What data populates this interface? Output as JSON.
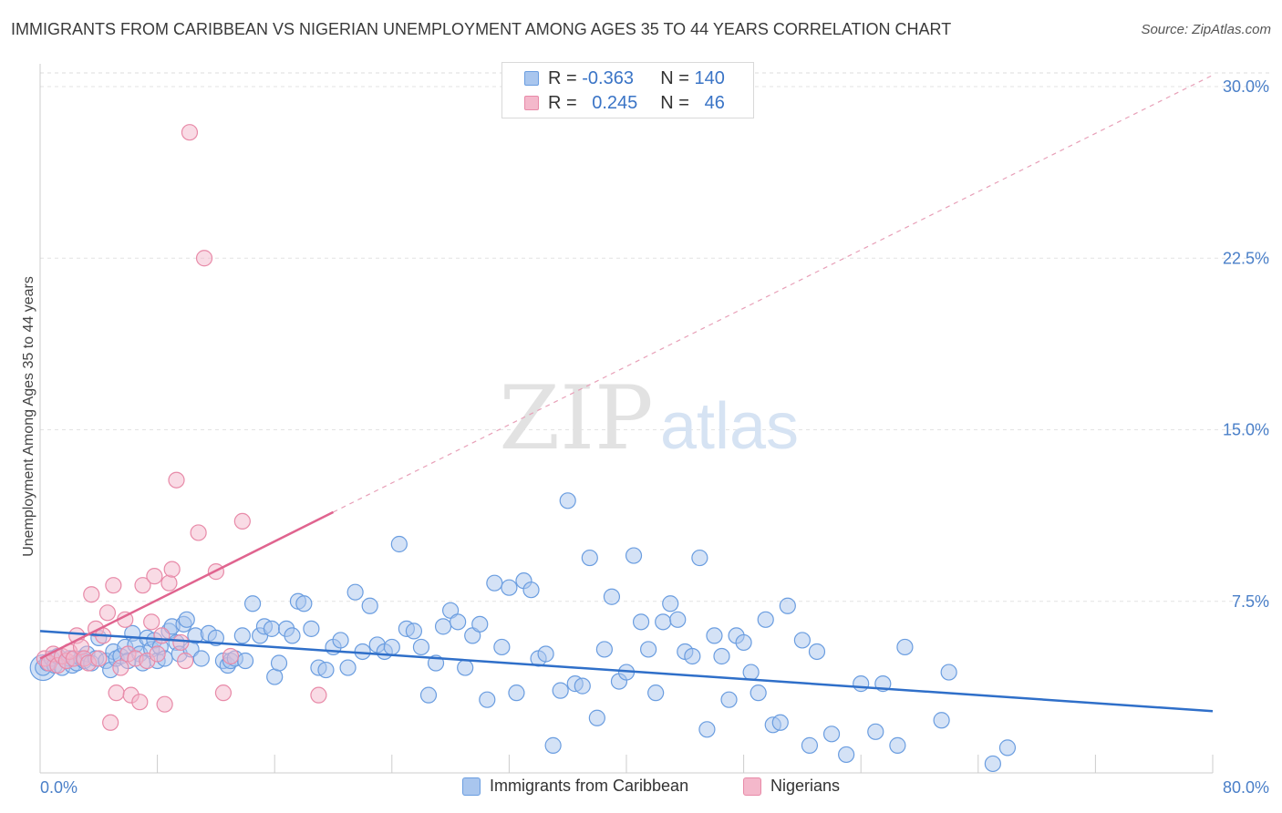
{
  "title": "IMMIGRANTS FROM CARIBBEAN VS NIGERIAN UNEMPLOYMENT AMONG AGES 35 TO 44 YEARS CORRELATION CHART",
  "source": "Source: ZipAtlas.com",
  "watermark": {
    "zip": "ZIP",
    "atlas": "atlas"
  },
  "legend": {
    "rows": [
      {
        "r_label": "R =",
        "r_value": "-0.363",
        "n_label": "N =",
        "n_value": "140",
        "color": "#a9c6ee"
      },
      {
        "r_label": "R =",
        "r_value": "0.245",
        "n_label": "N =",
        "n_value": "46",
        "color": "#f4b8cb"
      }
    ]
  },
  "bottom_legend": [
    {
      "label": "Immigrants from Caribbean",
      "color": "#a9c6ee"
    },
    {
      "label": "Nigerians",
      "color": "#f4b8cb"
    }
  ],
  "chart_data": {
    "type": "scatter",
    "title": "IMMIGRANTS FROM CARIBBEAN VS NIGERIAN UNEMPLOYMENT AMONG AGES 35 TO 44 YEARS CORRELATION CHART",
    "xlabel": "",
    "ylabel": "Unemployment Among Ages 35 to 44 years",
    "xlim": [
      0,
      80
    ],
    "ylim": [
      0,
      30
    ],
    "x_tick_labels": [
      "0.0%",
      "80.0%"
    ],
    "y_ticks": [
      7.5,
      15.0,
      22.5,
      30.0
    ],
    "y_tick_labels": [
      "7.5%",
      "15.0%",
      "22.5%",
      "30.0%"
    ],
    "grid": "horizontal dashed",
    "legend_position": "top-center",
    "series": [
      {
        "name": "Immigrants from Caribbean",
        "color": "#6a9de0",
        "fill": "#a9c6ee",
        "trend": {
          "x": [
            0,
            80
          ],
          "y": [
            6.2,
            2.7
          ],
          "style": "solid"
        },
        "points": [
          [
            0.2,
            4.6
          ],
          [
            0.5,
            4.8
          ],
          [
            0.8,
            5.0
          ],
          [
            1.0,
            4.7
          ],
          [
            1.2,
            5.1
          ],
          [
            1.5,
            4.6
          ],
          [
            1.8,
            4.9
          ],
          [
            2.0,
            5.0
          ],
          [
            2.2,
            4.7
          ],
          [
            2.5,
            4.8
          ],
          [
            2.8,
            5.0
          ],
          [
            3.0,
            4.9
          ],
          [
            3.2,
            5.2
          ],
          [
            3.5,
            4.8
          ],
          [
            3.8,
            5.0
          ],
          [
            4.0,
            5.9
          ],
          [
            4.5,
            4.9
          ],
          [
            4.8,
            4.5
          ],
          [
            5.0,
            5.3
          ],
          [
            5.2,
            5.0
          ],
          [
            5.5,
            5.1
          ],
          [
            5.8,
            5.5
          ],
          [
            6.0,
            4.9
          ],
          [
            6.3,
            6.1
          ],
          [
            6.5,
            5.6
          ],
          [
            6.8,
            5.2
          ],
          [
            7.0,
            4.8
          ],
          [
            7.3,
            5.9
          ],
          [
            7.6,
            5.4
          ],
          [
            7.8,
            5.8
          ],
          [
            8.0,
            4.9
          ],
          [
            8.2,
            5.5
          ],
          [
            8.5,
            5.0
          ],
          [
            8.8,
            6.2
          ],
          [
            9.0,
            6.4
          ],
          [
            9.3,
            5.7
          ],
          [
            9.5,
            5.2
          ],
          [
            9.8,
            6.5
          ],
          [
            10.0,
            6.7
          ],
          [
            10.3,
            5.4
          ],
          [
            10.6,
            6.0
          ],
          [
            11.0,
            5.0
          ],
          [
            11.5,
            6.1
          ],
          [
            12.0,
            5.9
          ],
          [
            12.5,
            4.9
          ],
          [
            12.8,
            4.7
          ],
          [
            13.0,
            4.9
          ],
          [
            13.3,
            5.0
          ],
          [
            13.8,
            6.0
          ],
          [
            14.0,
            4.9
          ],
          [
            14.5,
            7.4
          ],
          [
            15.0,
            6.0
          ],
          [
            15.3,
            6.4
          ],
          [
            15.8,
            6.3
          ],
          [
            16.0,
            4.2
          ],
          [
            16.3,
            4.8
          ],
          [
            16.8,
            6.3
          ],
          [
            17.2,
            6.0
          ],
          [
            17.6,
            7.5
          ],
          [
            18.0,
            7.4
          ],
          [
            18.5,
            6.3
          ],
          [
            19.0,
            4.6
          ],
          [
            19.5,
            4.5
          ],
          [
            20.0,
            5.5
          ],
          [
            20.5,
            5.8
          ],
          [
            21.0,
            4.6
          ],
          [
            21.5,
            7.9
          ],
          [
            22.0,
            5.3
          ],
          [
            22.5,
            7.3
          ],
          [
            23.0,
            5.6
          ],
          [
            23.5,
            5.3
          ],
          [
            24.0,
            5.5
          ],
          [
            24.5,
            10.0
          ],
          [
            25.0,
            6.3
          ],
          [
            25.5,
            6.2
          ],
          [
            26.0,
            5.5
          ],
          [
            26.5,
            3.4
          ],
          [
            27.0,
            4.8
          ],
          [
            27.5,
            6.4
          ],
          [
            28.0,
            7.1
          ],
          [
            28.5,
            6.6
          ],
          [
            29.0,
            4.6
          ],
          [
            29.5,
            6.0
          ],
          [
            30.0,
            6.5
          ],
          [
            30.5,
            3.2
          ],
          [
            31.0,
            8.3
          ],
          [
            31.5,
            5.5
          ],
          [
            32.0,
            8.1
          ],
          [
            32.5,
            3.5
          ],
          [
            33.0,
            8.4
          ],
          [
            33.5,
            8.0
          ],
          [
            34.0,
            5.0
          ],
          [
            34.5,
            5.2
          ],
          [
            35.0,
            1.2
          ],
          [
            35.5,
            3.6
          ],
          [
            36.0,
            11.9
          ],
          [
            36.5,
            3.9
          ],
          [
            37.0,
            3.8
          ],
          [
            37.5,
            9.4
          ],
          [
            38.0,
            2.4
          ],
          [
            38.5,
            5.4
          ],
          [
            39.0,
            7.7
          ],
          [
            39.5,
            4.0
          ],
          [
            40.0,
            4.4
          ],
          [
            40.5,
            9.5
          ],
          [
            41.0,
            6.6
          ],
          [
            41.5,
            5.4
          ],
          [
            42.0,
            3.5
          ],
          [
            42.5,
            6.6
          ],
          [
            43.0,
            7.4
          ],
          [
            43.5,
            6.7
          ],
          [
            44.0,
            5.3
          ],
          [
            44.5,
            5.1
          ],
          [
            45.0,
            9.4
          ],
          [
            45.5,
            1.9
          ],
          [
            46.0,
            6.0
          ],
          [
            46.5,
            5.1
          ],
          [
            47.0,
            3.2
          ],
          [
            47.5,
            6.0
          ],
          [
            48.0,
            5.7
          ],
          [
            48.5,
            4.4
          ],
          [
            49.0,
            3.5
          ],
          [
            49.5,
            6.7
          ],
          [
            50.0,
            2.1
          ],
          [
            50.5,
            2.2
          ],
          [
            51.0,
            7.3
          ],
          [
            52.0,
            5.8
          ],
          [
            52.5,
            1.2
          ],
          [
            53.0,
            5.3
          ],
          [
            54.0,
            1.7
          ],
          [
            55.0,
            0.8
          ],
          [
            56.0,
            3.9
          ],
          [
            57.0,
            1.8
          ],
          [
            57.5,
            3.9
          ],
          [
            58.5,
            1.2
          ],
          [
            59.0,
            5.5
          ],
          [
            61.5,
            2.3
          ],
          [
            62.0,
            4.4
          ],
          [
            65.0,
            0.4
          ],
          [
            66.0,
            1.1
          ]
        ]
      },
      {
        "name": "Nigerians",
        "color": "#e88aa8",
        "fill": "#f4b8cb",
        "trend": {
          "x": [
            0,
            20
          ],
          "y": [
            5.0,
            11.4
          ],
          "style": "solid",
          "extended_x": [
            20,
            80
          ],
          "extended_y": [
            11.4,
            30.5
          ],
          "extended_style": "dashed"
        },
        "points": [
          [
            0.3,
            5.0
          ],
          [
            0.6,
            4.8
          ],
          [
            0.9,
            5.2
          ],
          [
            1.2,
            4.7
          ],
          [
            1.5,
            5.1
          ],
          [
            1.8,
            4.9
          ],
          [
            2.0,
            5.3
          ],
          [
            2.3,
            5.0
          ],
          [
            2.5,
            6.0
          ],
          [
            2.8,
            5.5
          ],
          [
            3.0,
            5.0
          ],
          [
            3.3,
            4.8
          ],
          [
            3.5,
            7.8
          ],
          [
            3.8,
            6.3
          ],
          [
            4.0,
            5.0
          ],
          [
            4.3,
            6.0
          ],
          [
            4.6,
            7.0
          ],
          [
            4.8,
            2.2
          ],
          [
            5.0,
            8.2
          ],
          [
            5.2,
            3.5
          ],
          [
            5.5,
            4.6
          ],
          [
            5.8,
            6.7
          ],
          [
            6.0,
            5.2
          ],
          [
            6.2,
            3.4
          ],
          [
            6.5,
            5.0
          ],
          [
            6.8,
            3.1
          ],
          [
            7.0,
            8.2
          ],
          [
            7.3,
            4.9
          ],
          [
            7.6,
            6.6
          ],
          [
            7.8,
            8.6
          ],
          [
            8.0,
            5.2
          ],
          [
            8.3,
            6.0
          ],
          [
            8.5,
            3.0
          ],
          [
            8.8,
            8.3
          ],
          [
            9.0,
            8.9
          ],
          [
            9.3,
            12.8
          ],
          [
            9.6,
            5.7
          ],
          [
            9.9,
            4.9
          ],
          [
            10.2,
            28.0
          ],
          [
            10.8,
            10.5
          ],
          [
            11.2,
            22.5
          ],
          [
            12.0,
            8.8
          ],
          [
            12.5,
            3.5
          ],
          [
            13.0,
            5.1
          ],
          [
            13.8,
            11.0
          ],
          [
            19.0,
            3.4
          ]
        ]
      }
    ]
  }
}
